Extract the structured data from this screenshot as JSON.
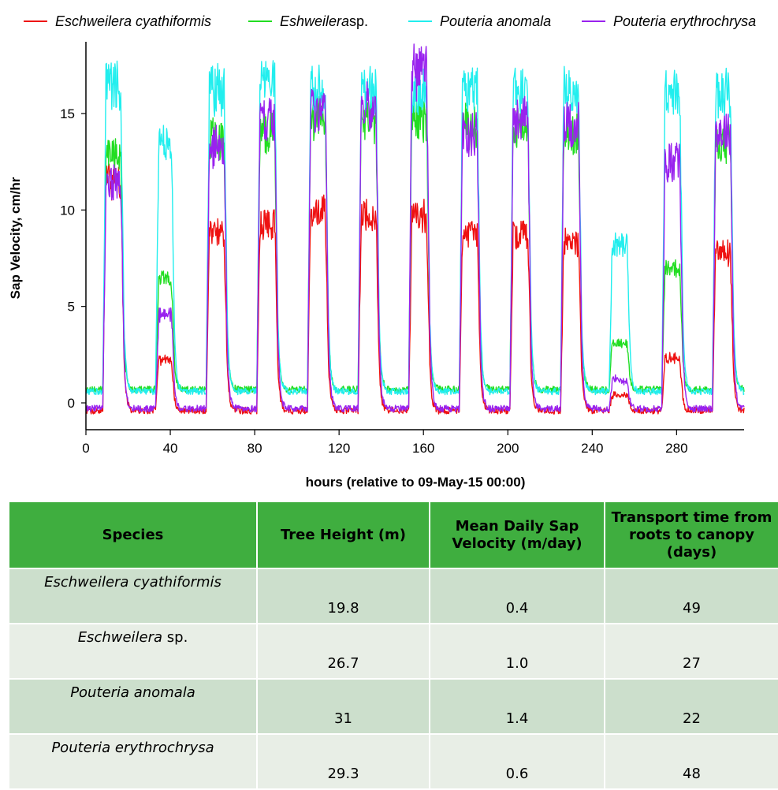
{
  "legend": {
    "items": [
      {
        "label": "Eschweilera cyathiformis",
        "italic": "Eschweilera cyathiformis",
        "suffix": "",
        "color": "#ee1111"
      },
      {
        "label": "Eshweilera sp.",
        "italic": "Eshweilera",
        "suffix": " sp.",
        "color": "#22dd22"
      },
      {
        "label": "Pouteria anomala",
        "italic": "Pouteria anomala",
        "suffix": "",
        "color": "#22eeee"
      },
      {
        "label": "Pouteria erythrochrysa",
        "italic": "Pouteria erythrochrysa",
        "suffix": "",
        "color": "#9922ee"
      }
    ]
  },
  "chart_data": {
    "type": "line",
    "xlabel": "hours (relative to 09-May-15 00:00)",
    "ylabel": "Sap Velocity, cm/hr",
    "xlim": [
      0,
      312
    ],
    "ylim": [
      -1.5,
      18.7
    ],
    "xticks": [
      0,
      40,
      80,
      120,
      160,
      200,
      240,
      280
    ],
    "yticks": [
      0,
      5,
      10,
      15
    ],
    "grid": false,
    "legend_position": "top",
    "days": [
      {
        "start": 8,
        "end": 18
      },
      {
        "start": 33,
        "end": 42
      },
      {
        "start": 57,
        "end": 67
      },
      {
        "start": 81,
        "end": 91
      },
      {
        "start": 105,
        "end": 115
      },
      {
        "start": 129,
        "end": 139
      },
      {
        "start": 153,
        "end": 163
      },
      {
        "start": 177,
        "end": 187
      },
      {
        "start": 201,
        "end": 211
      },
      {
        "start": 225,
        "end": 235
      },
      {
        "start": 248,
        "end": 258
      },
      {
        "start": 273,
        "end": 283
      },
      {
        "start": 297,
        "end": 307
      }
    ],
    "series": [
      {
        "name": "Eschweilera cyathiformis",
        "color": "#ee1111",
        "baseline": -0.4,
        "peaks": [
          12.5,
          2.5,
          9.5,
          10.0,
          10.7,
          10.5,
          10.5,
          9.5,
          9.5,
          9.0,
          0.5,
          2.5,
          8.5
        ]
      },
      {
        "name": "Eshweilera sp.",
        "color": "#22dd22",
        "baseline": 0.7,
        "peaks": [
          13.8,
          6.8,
          14.8,
          15.0,
          15.8,
          15.8,
          15.8,
          15.5,
          15.5,
          15.0,
          3.3,
          7.5,
          14.5
        ]
      },
      {
        "name": "Pouteria anomala",
        "color": "#22eeee",
        "baseline": 0.6,
        "peaks": [
          17.8,
          14.5,
          17.5,
          17.7,
          17.6,
          17.5,
          17.5,
          17.4,
          17.5,
          17.3,
          8.8,
          17.3,
          17.3
        ]
      },
      {
        "name": "Pouteria erythrochrysa",
        "color": "#9922ee",
        "baseline": -0.3,
        "peaks": [
          12.5,
          5.0,
          14.3,
          16.0,
          16.5,
          16.5,
          18.5,
          15.0,
          16.0,
          15.5,
          1.3,
          13.5,
          15.2
        ]
      }
    ]
  },
  "table": {
    "headers": [
      "Species",
      "Tree Height (m)",
      "Mean Daily Sap Velocity (m/day)",
      "Transport time from roots to canopy (days)"
    ],
    "rows": [
      {
        "species_italic": "Eschweilera cyathiformis",
        "species_suffix": "",
        "height": "19.8",
        "velocity": "0.4",
        "transport": "49"
      },
      {
        "species_italic": "Eschweilera",
        "species_suffix": " sp.",
        "height": "26.7",
        "velocity": "1.0",
        "transport": "27"
      },
      {
        "species_italic": "Pouteria anomala",
        "species_suffix": "",
        "height": "31",
        "velocity": "1.4",
        "transport": "22"
      },
      {
        "species_italic": "Pouteria erythrochrysa",
        "species_suffix": "",
        "height": "29.3",
        "velocity": "0.6",
        "transport": "48"
      }
    ]
  }
}
